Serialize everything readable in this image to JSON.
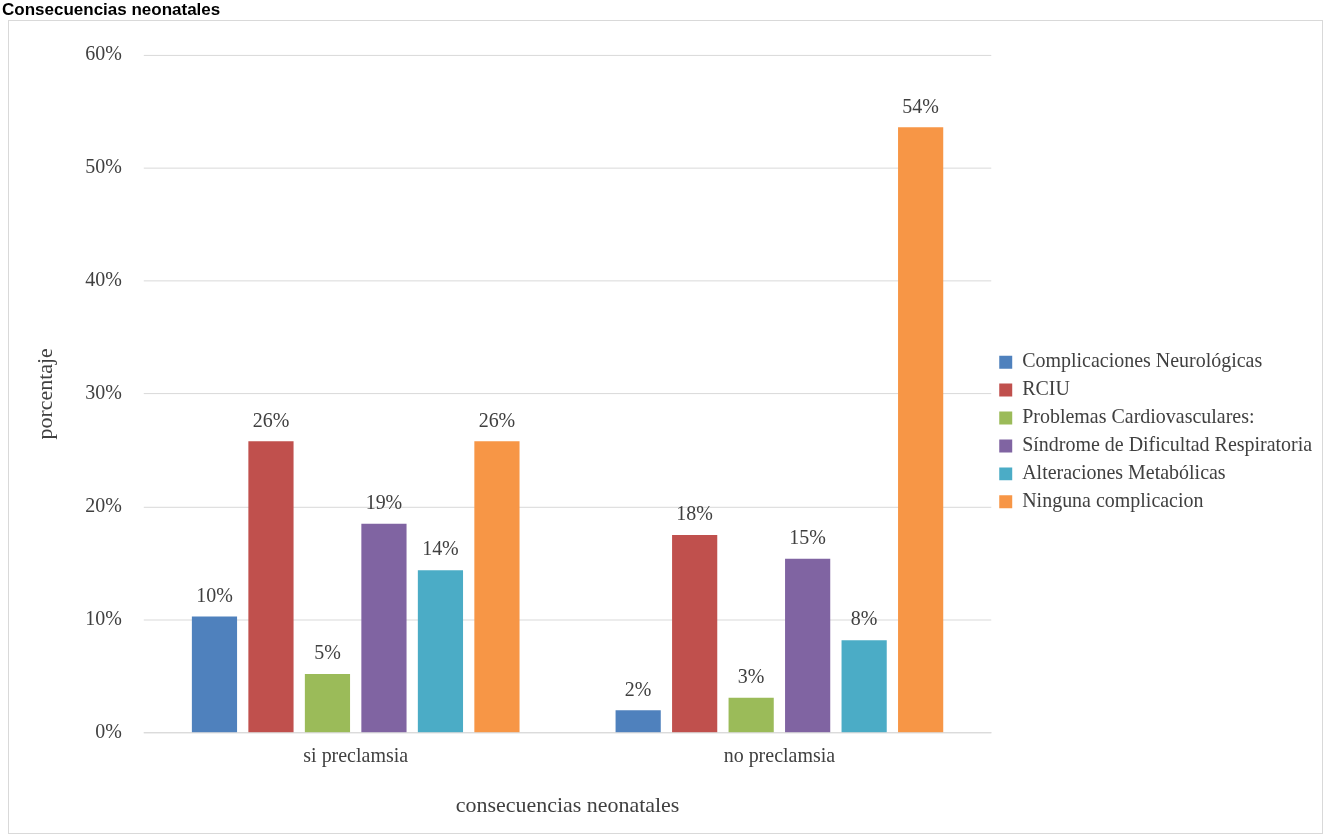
{
  "chart_data": {
    "type": "bar",
    "title": "Consecuencias neonatales",
    "xlabel": "consecuencias neonatales",
    "ylabel": "porcentaje",
    "categories": [
      "si preclamsia",
      "no preclamsia"
    ],
    "series": [
      {
        "name": "Complicaciones Neurológicas",
        "color": "#4f81bd",
        "values": [
          10.3,
          2.0
        ],
        "value_labels": [
          "10%",
          "2%"
        ]
      },
      {
        "name": "RCIU",
        "color": "#c0504d",
        "values": [
          25.8,
          17.5
        ],
        "value_labels": [
          "26%",
          "18%"
        ]
      },
      {
        "name": "Problemas Cardiovasculares:",
        "color": "#9bbb59",
        "values": [
          5.2,
          3.1
        ],
        "value_labels": [
          "5%",
          "3%"
        ]
      },
      {
        "name": "Síndrome de Dificultad Respiratoria",
        "color": "#8064a2",
        "values": [
          18.5,
          15.4
        ],
        "value_labels": [
          "19%",
          "15%"
        ]
      },
      {
        "name": "Alteraciones Metabólicas",
        "color": "#4bacc6",
        "values": [
          14.4,
          8.2
        ],
        "value_labels": [
          "14%",
          "8%"
        ]
      },
      {
        "name": "Ninguna complicacion",
        "color": "#f79646",
        "values": [
          25.8,
          53.6
        ],
        "value_labels": [
          "26%",
          "54%"
        ]
      }
    ],
    "ylim": [
      0,
      60
    ],
    "yticks": [
      {
        "value": 0,
        "label": "0%"
      },
      {
        "value": 10,
        "label": "10%"
      },
      {
        "value": 20,
        "label": "20%"
      },
      {
        "value": 30,
        "label": "30%"
      },
      {
        "value": 40,
        "label": "40%"
      },
      {
        "value": 50,
        "label": "50%"
      },
      {
        "value": 60,
        "label": "60%"
      }
    ],
    "grid": "y",
    "legend": "right"
  }
}
